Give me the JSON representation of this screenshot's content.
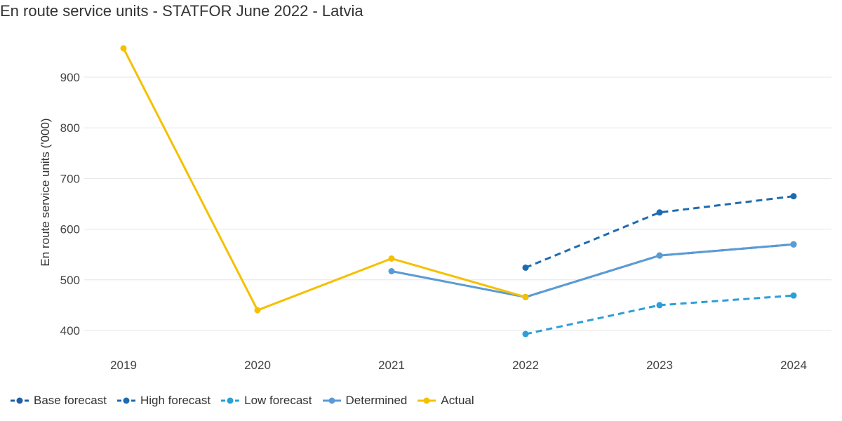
{
  "title": "En route service units - STATFOR June 2022 - Latvia",
  "chart_data": {
    "type": "line",
    "title": "En route service units - STATFOR June 2022 - Latvia",
    "xlabel": "",
    "ylabel": "En route service units ('000)",
    "categories": [
      "2019",
      "2020",
      "2021",
      "2022",
      "2023",
      "2024"
    ],
    "y_ticks": [
      400,
      500,
      600,
      700,
      800,
      900
    ],
    "ylim": [
      370,
      1000
    ],
    "grid": true,
    "legend_position": "bottom-left",
    "series": [
      {
        "name": "Base forecast",
        "color": "#1f5fa8",
        "dashed": true,
        "values": [
          null,
          null,
          null,
          466,
          548,
          570
        ]
      },
      {
        "name": "High forecast",
        "color": "#1f6bb0",
        "dashed": true,
        "values": [
          null,
          null,
          null,
          524,
          633,
          665
        ]
      },
      {
        "name": "Low forecast",
        "color": "#2b9fd9",
        "dashed": true,
        "values": [
          null,
          null,
          null,
          393,
          450,
          469
        ]
      },
      {
        "name": "Determined",
        "color": "#5b9bd5",
        "dashed": false,
        "values": [
          null,
          null,
          517,
          466,
          548,
          570
        ]
      },
      {
        "name": "Actual",
        "color": "#f5c000",
        "dashed": false,
        "values": [
          957,
          440,
          542,
          466,
          null,
          null
        ]
      }
    ]
  }
}
